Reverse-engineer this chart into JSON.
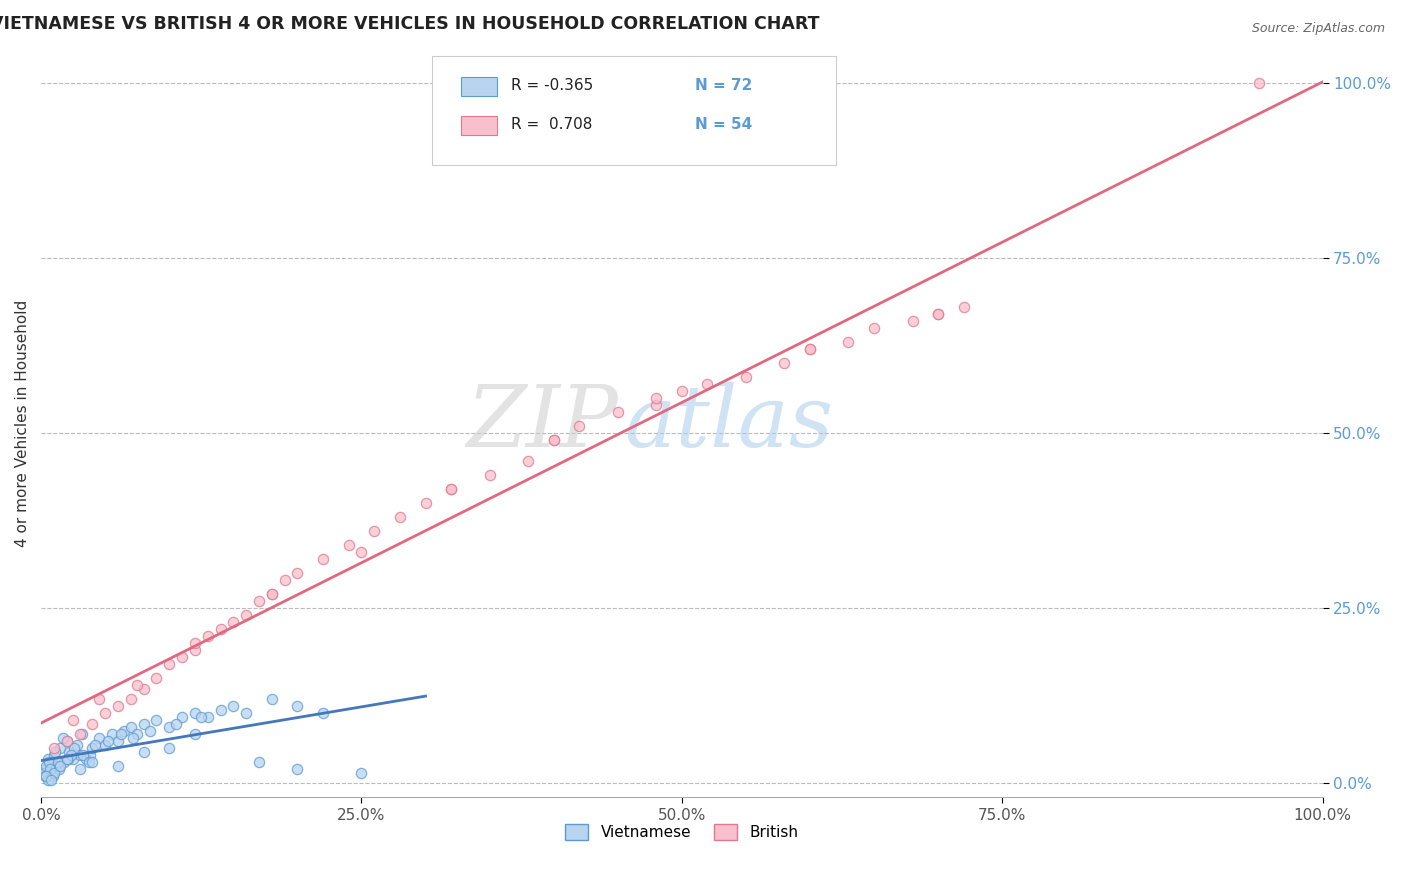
{
  "title": "VIETNAMESE VS BRITISH 4 OR MORE VEHICLES IN HOUSEHOLD CORRELATION CHART",
  "source": "Source: ZipAtlas.com",
  "ylabel": "4 or more Vehicles in Household",
  "xlim": [
    0,
    100
  ],
  "ylim": [
    -2,
    105
  ],
  "xticks": [
    0,
    25,
    50,
    75,
    100
  ],
  "yticks": [
    0,
    25,
    50,
    75,
    100
  ],
  "xticklabels": [
    "0.0%",
    "25.0%",
    "50.0%",
    "75.0%",
    "100.0%"
  ],
  "yticklabels": [
    "0.0%",
    "25.0%",
    "50.0%",
    "75.0%",
    "100.0%"
  ],
  "watermark": "ZIPatlas",
  "legend_line1_r": "R = -0.365",
  "legend_line1_n": "N = 72",
  "legend_line2_r": "R =  0.708",
  "legend_line2_n": "N = 54",
  "viet_color_face": "#b8d4ee",
  "viet_color_edge": "#5b9bd5",
  "brit_color_face": "#f8c0cc",
  "brit_color_edge": "#e07890",
  "viet_line_color": "#4477bb",
  "brit_line_color": "#e06880",
  "background_color": "#ffffff",
  "grid_color": "#bbbbbb",
  "watermark_color": "#c8dff0",
  "tick_color_y": "#5b9bd5",
  "tick_color_x": "#555555",
  "viet_x": [
    0.3,
    0.5,
    0.8,
    1.0,
    1.2,
    1.5,
    1.8,
    2.0,
    2.2,
    2.5,
    2.8,
    3.0,
    3.2,
    3.5,
    3.8,
    4.0,
    4.5,
    5.0,
    5.5,
    6.0,
    6.5,
    7.0,
    7.5,
    8.0,
    9.0,
    10.0,
    11.0,
    12.0,
    13.0,
    14.0,
    15.0,
    16.0,
    18.0,
    20.0,
    22.0,
    0.2,
    0.4,
    0.6,
    0.9,
    1.1,
    1.4,
    1.7,
    2.1,
    2.6,
    3.3,
    4.2,
    5.2,
    6.2,
    7.2,
    8.5,
    10.5,
    12.5,
    0.3,
    0.7,
    1.3,
    2.3,
    3.7,
    0.5,
    1.0,
    1.5,
    2.0,
    3.0,
    4.0,
    6.0,
    8.0,
    10.0,
    12.0,
    0.4,
    0.8,
    25.0,
    20.0,
    17.0
  ],
  "viet_y": [
    2.0,
    3.5,
    1.5,
    4.0,
    2.5,
    5.0,
    3.0,
    6.0,
    4.5,
    3.5,
    5.5,
    4.0,
    7.0,
    3.5,
    4.0,
    5.0,
    6.5,
    5.5,
    7.0,
    6.0,
    7.5,
    8.0,
    7.0,
    8.5,
    9.0,
    8.0,
    9.5,
    10.0,
    9.5,
    10.5,
    11.0,
    10.0,
    12.0,
    11.0,
    10.0,
    1.5,
    2.5,
    3.0,
    1.0,
    4.5,
    2.0,
    6.5,
    3.5,
    5.0,
    4.0,
    5.5,
    6.0,
    7.0,
    6.5,
    7.5,
    8.5,
    9.5,
    1.0,
    2.0,
    3.0,
    4.0,
    3.0,
    0.5,
    1.5,
    2.5,
    3.5,
    2.0,
    3.0,
    2.5,
    4.5,
    5.0,
    7.0,
    1.0,
    0.5,
    1.5,
    2.0,
    3.0
  ],
  "brit_x": [
    1.0,
    2.0,
    3.0,
    4.0,
    5.0,
    6.0,
    7.0,
    8.0,
    9.0,
    10.0,
    11.0,
    12.0,
    13.0,
    14.0,
    15.0,
    16.0,
    17.0,
    18.0,
    19.0,
    20.0,
    22.0,
    24.0,
    26.0,
    28.0,
    30.0,
    32.0,
    35.0,
    38.0,
    40.0,
    42.0,
    45.0,
    48.0,
    50.0,
    52.0,
    55.0,
    58.0,
    60.0,
    63.0,
    65.0,
    68.0,
    70.0,
    72.0,
    95.0,
    2.5,
    4.5,
    7.5,
    12.0,
    18.0,
    25.0,
    32.0,
    40.0,
    48.0,
    60.0,
    70.0
  ],
  "brit_y": [
    5.0,
    6.0,
    7.0,
    8.5,
    10.0,
    11.0,
    12.0,
    13.5,
    15.0,
    17.0,
    18.0,
    19.0,
    21.0,
    22.0,
    23.0,
    24.0,
    26.0,
    27.0,
    29.0,
    30.0,
    32.0,
    34.0,
    36.0,
    38.0,
    40.0,
    42.0,
    44.0,
    46.0,
    49.0,
    51.0,
    53.0,
    54.0,
    56.0,
    57.0,
    58.0,
    60.0,
    62.0,
    63.0,
    65.0,
    66.0,
    67.0,
    68.0,
    100.0,
    9.0,
    12.0,
    14.0,
    20.0,
    27.0,
    33.0,
    42.0,
    49.0,
    55.0,
    62.0,
    67.0
  ]
}
